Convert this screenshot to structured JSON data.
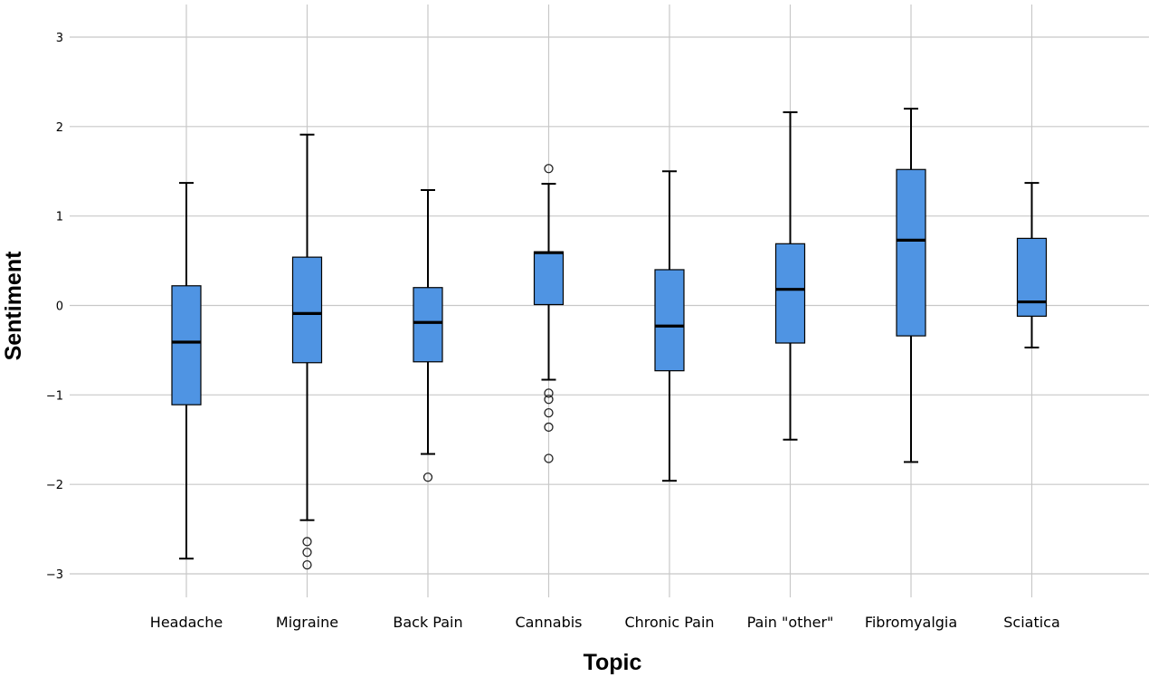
{
  "chart_data": {
    "type": "box",
    "xlabel": "Topic",
    "ylabel": "Sentiment",
    "ylim": [
      -3.3,
      3.3
    ],
    "yticks": [
      3,
      2,
      1,
      0,
      -1,
      -2,
      -3
    ],
    "ytick_labels": [
      "3",
      "2",
      "1",
      "0",
      "−1",
      "−2",
      "−3"
    ],
    "grid": true,
    "box_color": "#4f94e3",
    "grid_color": "#c8c8c8",
    "categories": [
      "Headache",
      "Migraine",
      "Back Pain",
      "Cannabis",
      "Chronic Pain",
      "Pain \"other\"",
      "Fibromyalgia",
      "Sciatica"
    ],
    "boxes": [
      {
        "category": "Headache",
        "whisker_low": -2.83,
        "q1": -1.11,
        "median": -0.41,
        "q3": 0.22,
        "whisker_high": 1.37,
        "outliers": []
      },
      {
        "category": "Migraine",
        "whisker_low": -2.4,
        "q1": -0.64,
        "median": -0.09,
        "q3": 0.54,
        "whisker_high": 1.91,
        "outliers": [
          -2.64,
          -2.76,
          -2.9
        ]
      },
      {
        "category": "Back Pain",
        "whisker_low": -1.66,
        "q1": -0.63,
        "median": -0.19,
        "q3": 0.2,
        "whisker_high": 1.29,
        "outliers": [
          -1.92
        ]
      },
      {
        "category": "Cannabis",
        "whisker_low": -0.83,
        "q1": 0.01,
        "median": 0.59,
        "q3": 0.6,
        "whisker_high": 1.36,
        "outliers": [
          1.53,
          -0.98,
          -1.05,
          -1.2,
          -1.36,
          -1.71
        ]
      },
      {
        "category": "Chronic Pain",
        "whisker_low": -1.96,
        "q1": -0.73,
        "median": -0.23,
        "q3": 0.4,
        "whisker_high": 1.5,
        "outliers": []
      },
      {
        "category": "Pain \"other\"",
        "whisker_low": -1.5,
        "q1": -0.42,
        "median": 0.18,
        "q3": 0.69,
        "whisker_high": 2.16,
        "outliers": []
      },
      {
        "category": "Fibromyalgia",
        "whisker_low": -1.75,
        "q1": -0.34,
        "median": 0.73,
        "q3": 1.52,
        "whisker_high": 2.2,
        "outliers": []
      },
      {
        "category": "Sciatica",
        "whisker_low": -0.47,
        "q1": -0.12,
        "median": 0.04,
        "q3": 0.75,
        "whisker_high": 1.37,
        "outliers": []
      }
    ]
  }
}
